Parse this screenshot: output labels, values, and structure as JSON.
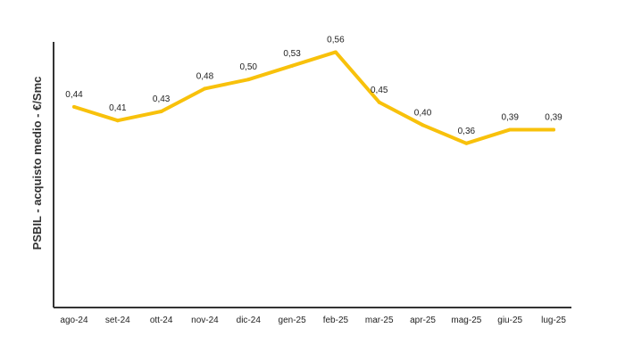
{
  "chart_data": {
    "type": "line",
    "title": "",
    "xlabel": "",
    "ylabel": "PSBIL - acquisto medio - €/Smc",
    "categories": [
      "ago-24",
      "set-24",
      "ott-24",
      "nov-24",
      "dic-24",
      "gen-25",
      "feb-25",
      "mar-25",
      "apr-25",
      "mag-25",
      "giu-25",
      "lug-25"
    ],
    "series": [
      {
        "values": [
          0.44,
          0.41,
          0.43,
          0.48,
          0.5,
          0.53,
          0.56,
          0.45,
          0.4,
          0.36,
          0.39,
          0.39
        ],
        "labels": [
          "0,44",
          "0,41",
          "0,43",
          "0,48",
          "0,50",
          "0,53",
          "0,56",
          "0,45",
          "0,40",
          "0,36",
          "0,39",
          "0,39"
        ],
        "color": "#F8C10B"
      }
    ],
    "ylim": [
      0.0,
      0.6
    ],
    "grid": false,
    "legend": "none",
    "axis_color": "#333333"
  }
}
